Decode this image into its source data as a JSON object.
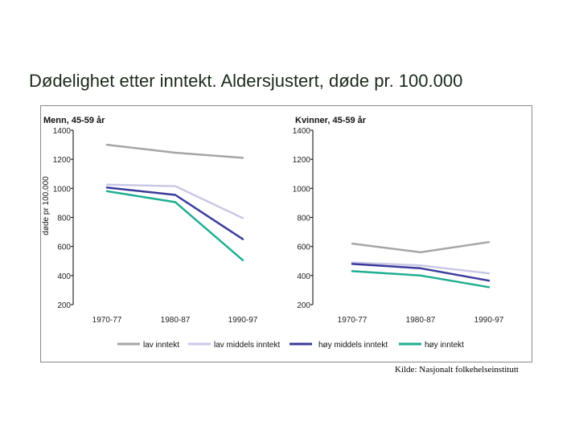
{
  "slide": {
    "title": "Dødelighet etter inntekt. Aldersjustert, døde pr. 100.000",
    "source": "Kilde: Nasjonalt folkehelseinstitutt"
  },
  "chart_data": [
    {
      "type": "line",
      "title": "Menn, 45-59 år",
      "ylabel": "døde pr 100.000",
      "categories": [
        "1970-77",
        "1980-87",
        "1990-97"
      ],
      "ylim": [
        200,
        1400
      ],
      "yticks": [
        1400,
        1200,
        1000,
        800,
        600,
        400,
        200
      ],
      "series": [
        {
          "name": "lav inntekt",
          "color": "#a6a6a6",
          "values": [
            1300,
            1245,
            1210
          ]
        },
        {
          "name": "lav middels inntekt",
          "color": "#c9c9e6",
          "values": [
            1025,
            1015,
            795
          ]
        },
        {
          "name": "høy middels inntekt",
          "color": "#3b3b9c",
          "values": [
            1005,
            955,
            650
          ]
        },
        {
          "name": "høy inntekt",
          "color": "#1fae92",
          "values": [
            980,
            905,
            505
          ]
        }
      ]
    },
    {
      "type": "line",
      "title": "Kvinner, 45-59 år",
      "categories": [
        "1970-77",
        "1980-87",
        "1990-97"
      ],
      "ylim": [
        200,
        1400
      ],
      "yticks": [
        1400,
        1200,
        1000,
        800,
        600,
        400,
        200
      ],
      "series": [
        {
          "name": "lav inntekt",
          "color": "#a6a6a6",
          "values": [
            620,
            560,
            630
          ]
        },
        {
          "name": "lav middels inntekt",
          "color": "#c9c9e6",
          "values": [
            490,
            470,
            415
          ]
        },
        {
          "name": "høy middels inntekt",
          "color": "#3b3b9c",
          "values": [
            480,
            450,
            365
          ]
        },
        {
          "name": "høy inntekt",
          "color": "#1fae92",
          "values": [
            430,
            400,
            320
          ]
        }
      ]
    }
  ],
  "legend": [
    {
      "label": "lav inntekt",
      "color": "#a6a6a6"
    },
    {
      "label": "lav middels inntekt",
      "color": "#c9c9e6"
    },
    {
      "label": "høy middels inntekt",
      "color": "#3b3b9c"
    },
    {
      "label": "høy inntekt",
      "color": "#1fae92"
    }
  ]
}
